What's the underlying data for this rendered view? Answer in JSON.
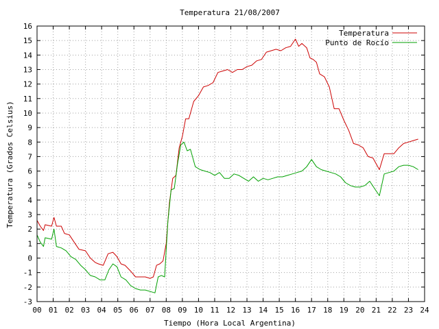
{
  "chart_data": {
    "type": "line",
    "title": "Temperatura 21/08/2007",
    "xlabel": "Tiempo (Hora Local Argentina)",
    "ylabel": "Temperatura (Grados Celsius)",
    "xlim": [
      0,
      24
    ],
    "ylim": [
      -3,
      16
    ],
    "xticks": [
      "00",
      "01",
      "02",
      "03",
      "04",
      "05",
      "06",
      "07",
      "08",
      "09",
      "10",
      "11",
      "12",
      "13",
      "14",
      "15",
      "16",
      "17",
      "18",
      "19",
      "20",
      "21",
      "22",
      "23",
      "24"
    ],
    "yticks": [
      -3,
      -2,
      -1,
      0,
      1,
      2,
      3,
      4,
      5,
      6,
      7,
      8,
      9,
      10,
      11,
      12,
      13,
      14,
      15,
      16
    ],
    "grid": true,
    "legend": "top-right",
    "series": [
      {
        "name": "Temperatura",
        "color": "#cc0000",
        "x": [
          0,
          0.2,
          0.4,
          0.5,
          0.9,
          1.05,
          1.2,
          1.5,
          1.7,
          2.0,
          2.3,
          2.6,
          3.0,
          3.3,
          3.6,
          3.8,
          4.1,
          4.4,
          4.7,
          4.95,
          5.2,
          5.45,
          5.8,
          6.1,
          6.4,
          6.7,
          7.0,
          7.2,
          7.4,
          7.6,
          7.8,
          8.0,
          8.1,
          8.2,
          8.4,
          8.6,
          8.8,
          9.0,
          9.2,
          9.4,
          9.7,
          10.0,
          10.3,
          10.6,
          10.9,
          11.2,
          11.5,
          11.8,
          12.1,
          12.4,
          12.7,
          13.0,
          13.3,
          13.6,
          13.9,
          14.2,
          14.5,
          14.8,
          15.1,
          15.4,
          15.7,
          16.0,
          16.2,
          16.4,
          16.7,
          16.9,
          17.1,
          17.3,
          17.5,
          17.8,
          18.1,
          18.4,
          18.7,
          19.0,
          19.3,
          19.6,
          19.9,
          20.2,
          20.5,
          20.8,
          21.0,
          21.2,
          21.5,
          21.8,
          22.1,
          22.4,
          22.7,
          23.0,
          23.3,
          23.6
        ],
        "values": [
          2.6,
          2.2,
          1.9,
          2.3,
          2.2,
          2.8,
          2.2,
          2.2,
          1.7,
          1.6,
          1.1,
          0.6,
          0.5,
          0.0,
          -0.3,
          -0.4,
          -0.5,
          0.3,
          0.4,
          0.1,
          -0.4,
          -0.5,
          -0.9,
          -1.3,
          -1.3,
          -1.3,
          -1.4,
          -1.3,
          -0.5,
          -0.4,
          -0.2,
          1.0,
          2.5,
          3.8,
          5.5,
          5.7,
          7.6,
          8.4,
          9.6,
          9.6,
          10.8,
          11.2,
          11.8,
          11.9,
          12.1,
          12.8,
          12.9,
          13.0,
          12.8,
          13.0,
          13.0,
          13.2,
          13.3,
          13.6,
          13.7,
          14.2,
          14.3,
          14.4,
          14.3,
          14.5,
          14.6,
          15.1,
          14.6,
          14.8,
          14.5,
          13.8,
          13.7,
          13.5,
          12.7,
          12.5,
          11.8,
          10.3,
          10.3,
          9.5,
          8.8,
          7.9,
          7.8,
          7.6,
          7.0,
          6.9,
          6.5,
          6.1,
          7.2,
          7.2,
          7.2,
          7.6,
          7.9,
          8.0,
          8.1,
          8.2
        ]
      },
      {
        "name": "Punto de Rocío",
        "color": "#00a000",
        "x": [
          0,
          0.2,
          0.4,
          0.5,
          0.9,
          1.05,
          1.2,
          1.5,
          1.8,
          2.1,
          2.4,
          2.7,
          3.0,
          3.3,
          3.6,
          3.9,
          4.2,
          4.45,
          4.7,
          4.95,
          5.2,
          5.5,
          5.8,
          6.1,
          6.4,
          6.7,
          7.0,
          7.3,
          7.5,
          7.7,
          7.9,
          8.1,
          8.3,
          8.5,
          8.7,
          8.9,
          9.1,
          9.3,
          9.5,
          9.8,
          10.1,
          10.4,
          10.7,
          11.0,
          11.3,
          11.6,
          11.9,
          12.2,
          12.5,
          12.8,
          13.1,
          13.4,
          13.7,
          14.0,
          14.3,
          14.6,
          14.9,
          15.2,
          15.5,
          15.8,
          16.1,
          16.4,
          16.7,
          17.0,
          17.3,
          17.6,
          17.9,
          18.2,
          18.5,
          18.8,
          19.1,
          19.4,
          19.7,
          20.0,
          20.3,
          20.6,
          20.9,
          21.2,
          21.5,
          21.8,
          22.1,
          22.4,
          22.7,
          23.0,
          23.3,
          23.6
        ],
        "values": [
          1.6,
          1.1,
          0.8,
          1.4,
          1.3,
          2.0,
          0.8,
          0.7,
          0.5,
          0.1,
          -0.1,
          -0.5,
          -0.8,
          -1.2,
          -1.3,
          -1.5,
          -1.5,
          -0.8,
          -0.4,
          -0.6,
          -1.3,
          -1.5,
          -1.9,
          -2.1,
          -2.2,
          -2.2,
          -2.3,
          -2.4,
          -1.3,
          -1.2,
          -1.3,
          2.5,
          4.7,
          4.8,
          6.5,
          7.8,
          8.0,
          7.4,
          7.5,
          6.3,
          6.1,
          6.0,
          5.9,
          5.7,
          5.9,
          5.5,
          5.5,
          5.8,
          5.7,
          5.5,
          5.3,
          5.6,
          5.3,
          5.5,
          5.4,
          5.5,
          5.6,
          5.6,
          5.7,
          5.8,
          5.9,
          6.0,
          6.3,
          6.8,
          6.3,
          6.1,
          6.0,
          5.9,
          5.8,
          5.6,
          5.2,
          5.0,
          4.9,
          4.9,
          5.0,
          5.3,
          4.8,
          4.3,
          5.8,
          5.9,
          6.0,
          6.3,
          6.4,
          6.4,
          6.3,
          6.1
        ]
      }
    ]
  }
}
